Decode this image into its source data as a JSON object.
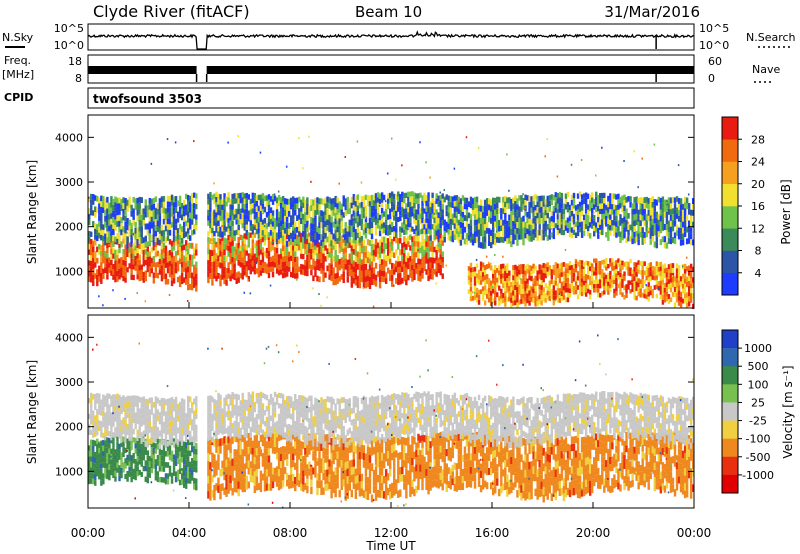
{
  "header": {
    "station": "Clyde River (fitACF)",
    "beam": "Beam 10",
    "date": "31/Mar/2016"
  },
  "top_panels": {
    "nsky_label": "N.Sky",
    "nsky_ticks": [
      "10^5",
      "10^0"
    ],
    "nsearch_label": "N.Search",
    "nsearch_ticks": [
      "10^5",
      "10^0"
    ],
    "freq_label_1": "Freq.",
    "freq_label_2": "[MHz]",
    "freq_ticks": [
      "18",
      "8"
    ],
    "nave_label": "Nave",
    "nave_ticks": [
      "60",
      "0"
    ],
    "cpid_label": "CPID",
    "cpid_value": "twofsound 3503"
  },
  "chart_data": [
    {
      "type": "heatmap",
      "name": "Power",
      "ylabel": "Slant Range [km]",
      "ylim": [
        180,
        4500
      ],
      "yticks": [
        "1000",
        "2000",
        "3000",
        "4000"
      ],
      "colorbar_label": "Power [dB]",
      "colorbar_ticks": [
        "4",
        "8",
        "12",
        "16",
        "20",
        "24",
        "28"
      ],
      "colors": [
        "#1e3cff",
        "#2c55a8",
        "#3a8a5a",
        "#6fc24a",
        "#f2e030",
        "#f6a020",
        "#f26a10",
        "#e81c10"
      ],
      "bands": [
        {
          "t0": 0.0,
          "t1": 4.3,
          "r0": 700,
          "r1": 1700,
          "level": "strong"
        },
        {
          "t0": 4.7,
          "t1": 14.0,
          "r0": 800,
          "r1": 1800,
          "level": "strong"
        },
        {
          "t0": 15.0,
          "t1": 24.0,
          "r0": 350,
          "r1": 1200,
          "level": "medium"
        },
        {
          "t0": 0.0,
          "t1": 24.0,
          "r0": 1700,
          "r1": 2700,
          "level": "weak"
        }
      ]
    },
    {
      "type": "heatmap",
      "name": "Velocity",
      "ylabel": "Slant Range [km]",
      "ylim": [
        180,
        4500
      ],
      "yticks": [
        "1000",
        "2000",
        "3000",
        "4000"
      ],
      "colorbar_label": "Velocity [m s⁻¹]",
      "colorbar_ticks": [
        "1000",
        "500",
        "100",
        "25",
        "-25",
        "-100",
        "-500",
        "-1000"
      ],
      "colors": [
        "#2040c8",
        "#3068b0",
        "#3a8a4a",
        "#78c050",
        "#c8c8c8",
        "#f0d040",
        "#f08820",
        "#e83010",
        "#e00000"
      ],
      "bands": [
        {
          "t0": 0.0,
          "t1": 4.3,
          "r0": 700,
          "r1": 1700,
          "level": "green"
        },
        {
          "t0": 4.7,
          "t1": 24.0,
          "r0": 500,
          "r1": 1800,
          "level": "orange"
        },
        {
          "t0": 0.0,
          "t1": 24.0,
          "r0": 1700,
          "r1": 2700,
          "level": "gray"
        }
      ]
    }
  ],
  "xaxis": {
    "label": "Time UT",
    "ticks": [
      "00:00",
      "04:00",
      "08:00",
      "12:00",
      "16:00",
      "20:00",
      "00:00"
    ],
    "range_hours": [
      0,
      24
    ]
  }
}
